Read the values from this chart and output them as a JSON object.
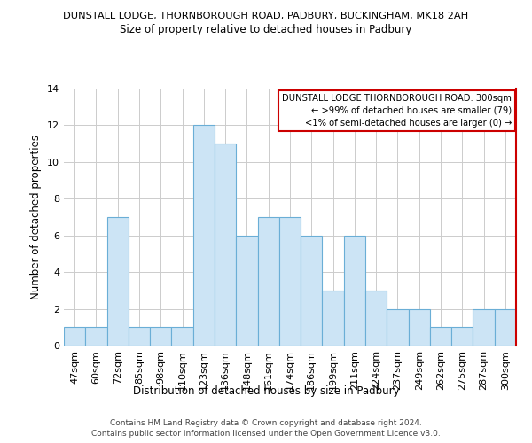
{
  "title_line1": "DUNSTALL LODGE, THORNBOROUGH ROAD, PADBURY, BUCKINGHAM, MK18 2AH",
  "title_line2": "Size of property relative to detached houses in Padbury",
  "xlabel": "Distribution of detached houses by size in Padbury",
  "ylabel": "Number of detached properties",
  "footer_line1": "Contains HM Land Registry data © Crown copyright and database right 2024.",
  "footer_line2": "Contains public sector information licensed under the Open Government Licence v3.0.",
  "bar_labels": [
    "47sqm",
    "60sqm",
    "72sqm",
    "85sqm",
    "98sqm",
    "110sqm",
    "123sqm",
    "136sqm",
    "148sqm",
    "161sqm",
    "174sqm",
    "186sqm",
    "199sqm",
    "211sqm",
    "224sqm",
    "237sqm",
    "249sqm",
    "262sqm",
    "275sqm",
    "287sqm",
    "300sqm"
  ],
  "bar_values": [
    1,
    1,
    7,
    1,
    1,
    1,
    12,
    11,
    6,
    7,
    7,
    6,
    3,
    6,
    3,
    2,
    2,
    1,
    1,
    2,
    2
  ],
  "bar_color": "#cce4f5",
  "bar_edge_color": "#6aaed6",
  "highlight_bar_index": 20,
  "highlight_line_color": "#cc0000",
  "annotation_title": "DUNSTALL LODGE THORNBOROUGH ROAD: 300sqm",
  "annotation_line1": "← >99% of detached houses are smaller (79)",
  "annotation_line2": "<1% of semi-detached houses are larger (0) →",
  "annotation_box_edge_color": "#cc0000",
  "ylim": [
    0,
    14
  ],
  "yticks": [
    0,
    2,
    4,
    6,
    8,
    10,
    12,
    14
  ],
  "background_color": "#ffffff",
  "grid_color": "#cccccc"
}
